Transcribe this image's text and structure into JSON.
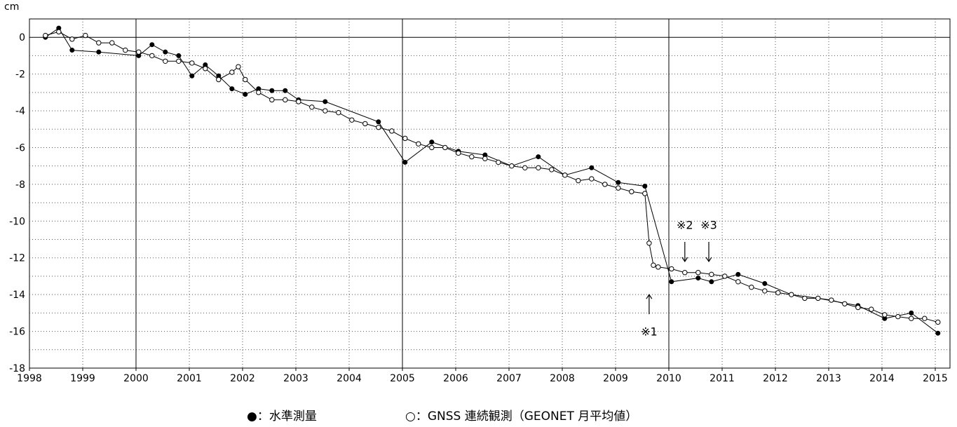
{
  "chart_data": {
    "type": "line",
    "ylabel": "cm",
    "xlim": [
      1998,
      2015.25
    ],
    "ylim": [
      -18,
      1
    ],
    "x_ticks": [
      "1998",
      "1999",
      "2000",
      "2001",
      "2002",
      "2003",
      "2004",
      "2005",
      "2006",
      "2007",
      "2008",
      "2009",
      "2010",
      "2011",
      "2012",
      "2013",
      "2014",
      "2015"
    ],
    "y_ticks": [
      "0",
      "-2",
      "-4",
      "-6",
      "-8",
      "-10",
      "-12",
      "-14",
      "-16",
      "-18"
    ],
    "grid": true,
    "legend_position": "bottom",
    "series": [
      {
        "name": "●：水準測量",
        "marker": "filled-circle",
        "x": [
          1998.3,
          1998.55,
          1998.8,
          1999.3,
          2000.05,
          2000.3,
          2000.55,
          2000.8,
          2001.05,
          2001.3,
          2001.55,
          2001.8,
          2002.05,
          2002.3,
          2002.55,
          2002.8,
          2003.05,
          2003.55,
          2004.55,
          2005.05,
          2005.55,
          2006.05,
          2006.55,
          2007.05,
          2007.55,
          2008.05,
          2008.55,
          2009.05,
          2009.55,
          2010.05,
          2010.55,
          2010.8,
          2011.3,
          2011.8,
          2012.3,
          2012.8,
          2013.55,
          2014.05,
          2014.55,
          2015.05
        ],
        "values": [
          0.0,
          0.5,
          -0.7,
          -0.8,
          -1.0,
          -0.4,
          -0.8,
          -1.0,
          -2.1,
          -1.5,
          -2.1,
          -2.8,
          -3.1,
          -2.8,
          -2.9,
          -2.9,
          -3.4,
          -3.5,
          -4.6,
          -6.8,
          -5.7,
          -6.2,
          -6.4,
          -7.0,
          -6.5,
          -7.5,
          -7.1,
          -7.9,
          -8.1,
          -13.3,
          -13.1,
          -13.3,
          -12.9,
          -13.4,
          -14.0,
          -14.2,
          -14.6,
          -15.3,
          -15.0,
          -16.1
        ]
      },
      {
        "name": "○：GNSS 連続観測（GEONET 月平均値）",
        "marker": "open-circle",
        "x": [
          1998.3,
          1998.55,
          1998.8,
          1999.05,
          1999.3,
          1999.55,
          1999.8,
          2000.05,
          2000.3,
          2000.55,
          2000.8,
          2001.05,
          2001.3,
          2001.55,
          2001.8,
          2001.92,
          2002.05,
          2002.3,
          2002.55,
          2002.8,
          2003.05,
          2003.3,
          2003.55,
          2003.8,
          2004.05,
          2004.3,
          2004.55,
          2004.8,
          2005.05,
          2005.3,
          2005.55,
          2005.8,
          2006.05,
          2006.3,
          2006.55,
          2006.8,
          2007.05,
          2007.3,
          2007.55,
          2007.8,
          2008.05,
          2008.3,
          2008.55,
          2008.8,
          2009.05,
          2009.3,
          2009.55,
          2009.63,
          2009.71,
          2009.8,
          2010.05,
          2010.3,
          2010.55,
          2010.8,
          2011.05,
          2011.3,
          2011.55,
          2011.8,
          2012.05,
          2012.3,
          2012.55,
          2012.8,
          2013.05,
          2013.3,
          2013.55,
          2013.8,
          2014.05,
          2014.3,
          2014.55,
          2014.8,
          2015.05
        ],
        "values": [
          0.1,
          0.3,
          -0.1,
          0.1,
          -0.3,
          -0.3,
          -0.7,
          -0.8,
          -1.0,
          -1.3,
          -1.3,
          -1.4,
          -1.7,
          -2.3,
          -1.9,
          -1.6,
          -2.3,
          -3.0,
          -3.4,
          -3.4,
          -3.5,
          -3.8,
          -4.0,
          -4.1,
          -4.5,
          -4.7,
          -4.9,
          -5.1,
          -5.5,
          -5.8,
          -6.0,
          -6.0,
          -6.3,
          -6.5,
          -6.6,
          -6.8,
          -7.0,
          -7.1,
          -7.1,
          -7.2,
          -7.5,
          -7.8,
          -7.7,
          -8.0,
          -8.2,
          -8.4,
          -8.5,
          -11.2,
          -12.4,
          -12.5,
          -12.6,
          -12.8,
          -12.8,
          -12.9,
          -13.0,
          -13.3,
          -13.6,
          -13.8,
          -13.9,
          -14.0,
          -14.2,
          -14.2,
          -14.3,
          -14.5,
          -14.7,
          -14.8,
          -15.1,
          -15.2,
          -15.3,
          -15.3,
          -15.5
        ]
      }
    ],
    "annotations": [
      {
        "text": "※1",
        "x": 2009.63,
        "arrow": "up",
        "y_arrow_tip": -14.0,
        "y_text": -16.0
      },
      {
        "text": "※2",
        "x": 2010.3,
        "arrow": "down",
        "y_arrow_tip": -12.2,
        "y_text": -10.2
      },
      {
        "text": "※3",
        "x": 2010.75,
        "arrow": "down",
        "y_arrow_tip": -12.2,
        "y_text": -10.2
      }
    ]
  }
}
